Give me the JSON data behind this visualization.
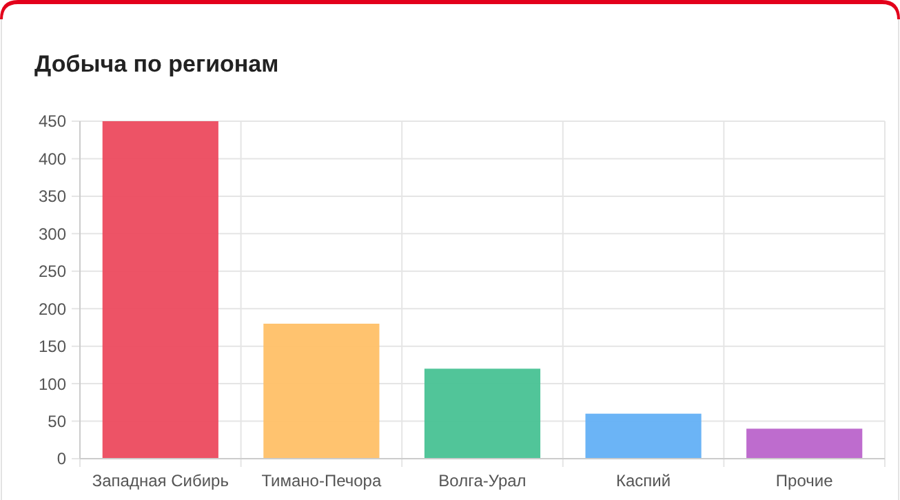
{
  "chart_data": {
    "type": "bar",
    "title": "Добыча по регионам",
    "categories": [
      "Западная Сибирь",
      "Тимано-Печора",
      "Волга-Урал",
      "Каспий",
      "Прочие"
    ],
    "values": [
      450,
      180,
      120,
      60,
      40
    ],
    "colors": [
      "#ec4a5e",
      "#ffc067",
      "#48c294",
      "#63b0f6",
      "#bb64cb"
    ],
    "ylim": [
      0,
      450
    ],
    "yticks": [
      0,
      50,
      100,
      150,
      200,
      250,
      300,
      350,
      400,
      450
    ],
    "grid": true
  }
}
